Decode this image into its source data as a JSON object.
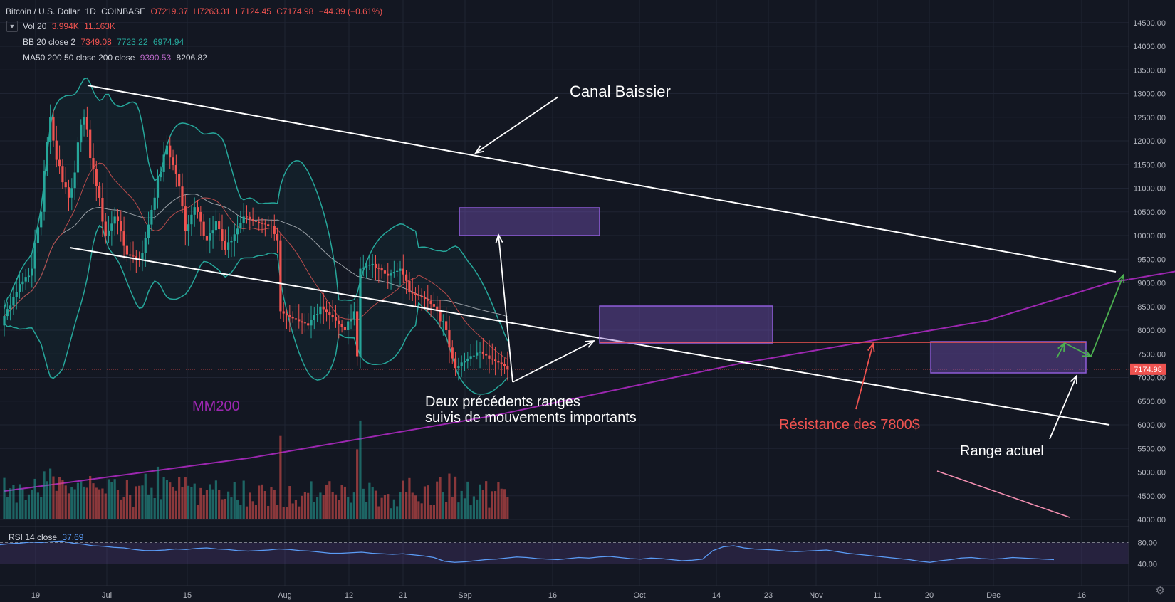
{
  "header": {
    "symbol": "Bitcoin / U.S. Dollar",
    "interval": "1D",
    "exchange": "COINBASE",
    "open": "O7219.37",
    "high": "H7263.31",
    "low": "L7124.45",
    "close": "C7174.98",
    "change": "−44.39 (−0.61%)",
    "vol_label": "Vol 20",
    "vol_values": [
      "3.994K",
      "11.163K"
    ],
    "bb_label": "BB 20 close 2",
    "bb_values": [
      "7349.08",
      "7723.22",
      "6974.94"
    ],
    "ma_label": "MA50 200 50 close 200 close",
    "ma_values": [
      "9390.53",
      "8206.82"
    ]
  },
  "rsi": {
    "label": "RSI 14 close",
    "value": "37.69",
    "ticks": [
      "80.00",
      "40.00"
    ]
  },
  "colors": {
    "up": "#26a69a",
    "down": "#ef5350",
    "ma200": "#9c27b0",
    "bb": "#26a69a",
    "range_fill": "#7e57c2",
    "trendline": "#ffffff",
    "resistance": "#ef5350",
    "target_arrow": "#4caf50",
    "rsi": "#5b9cf6"
  },
  "chart_data": {
    "type": "candlestick",
    "title": "Bitcoin / U.S. Dollar",
    "ylim": [
      3900,
      14800
    ],
    "y_ticks": [
      "14500.00",
      "14000.00",
      "13500.00",
      "13000.00",
      "12500.00",
      "12000.00",
      "11500.00",
      "11000.00",
      "10500.00",
      "10000.00",
      "9500.00",
      "9000.00",
      "8500.00",
      "8000.00",
      "7500.00",
      "7000.00",
      "6500.00",
      "6000.00",
      "5500.00",
      "5000.00",
      "4500.00",
      "4000.00"
    ],
    "x_ticks": [
      "19",
      "Jul",
      "15",
      "Aug",
      "12",
      "21",
      "Sep",
      "16",
      "Oct",
      "14",
      "23",
      "Nov",
      "11",
      "20",
      "Dec",
      "16"
    ],
    "last_price": "7174.98",
    "anchors": [
      {
        "v": 8300,
        "d": 1
      },
      {
        "v": 8800,
        "d": 4
      },
      {
        "v": 9300,
        "d": 5
      },
      {
        "v": 10500,
        "d": 3
      },
      {
        "v": 12500,
        "d": 3
      },
      {
        "v": 11600,
        "d": 2
      },
      {
        "v": 10800,
        "d": 4
      },
      {
        "v": 12500,
        "d": 5
      },
      {
        "v": 11400,
        "d": 3
      },
      {
        "v": 10000,
        "d": 4
      },
      {
        "v": 10400,
        "d": 3
      },
      {
        "v": 9600,
        "d": 4
      },
      {
        "v": 9500,
        "d": 4
      },
      {
        "v": 10800,
        "d": 5
      },
      {
        "v": 11900,
        "d": 4
      },
      {
        "v": 11300,
        "d": 3
      },
      {
        "v": 10100,
        "d": 3
      },
      {
        "v": 10600,
        "d": 3
      },
      {
        "v": 9900,
        "d": 4
      },
      {
        "v": 10300,
        "d": 3
      },
      {
        "v": 9700,
        "d": 3
      },
      {
        "v": 10400,
        "d": 6
      },
      {
        "v": 10250,
        "d": 6
      },
      {
        "v": 10200,
        "d": 3
      },
      {
        "v": 9900,
        "d": 2
      },
      {
        "v": 8400,
        "d": 1
      },
      {
        "v": 8250,
        "d": 4
      },
      {
        "v": 8100,
        "d": 5
      },
      {
        "v": 8500,
        "d": 4
      },
      {
        "v": 8200,
        "d": 5
      },
      {
        "v": 8000,
        "d": 3
      },
      {
        "v": 8400,
        "d": 3
      },
      {
        "v": 7450,
        "d": 1
      },
      {
        "v": 9300,
        "d": 1
      },
      {
        "v": 9400,
        "d": 4
      },
      {
        "v": 9150,
        "d": 5
      },
      {
        "v": 9300,
        "d": 4
      },
      {
        "v": 8800,
        "d": 3
      },
      {
        "v": 8700,
        "d": 4
      },
      {
        "v": 8500,
        "d": 4
      },
      {
        "v": 8000,
        "d": 4
      },
      {
        "v": 7200,
        "d": 3
      },
      {
        "v": 7400,
        "d": 4
      },
      {
        "v": 7550,
        "d": 4
      },
      {
        "v": 7350,
        "d": 5
      },
      {
        "v": 7175,
        "d": 4
      }
    ],
    "ma200_points": [
      [
        0,
        4600
      ],
      [
        80,
        5300
      ],
      [
        160,
        6200
      ],
      [
        240,
        7300
      ],
      [
        320,
        8200
      ],
      [
        360,
        9000
      ],
      [
        400,
        9450
      ],
      [
        420,
        9400
      ]
    ],
    "rsi_series": [
      66,
      68,
      69,
      71,
      70,
      72,
      73,
      69,
      67,
      64,
      63,
      61,
      60,
      57,
      55,
      55,
      56,
      58,
      57,
      59,
      60,
      58,
      57,
      55,
      54,
      55,
      56,
      58,
      57,
      55,
      54,
      52,
      50,
      50,
      51,
      52,
      50,
      49,
      48,
      49,
      47,
      45,
      42,
      35,
      33,
      34,
      36,
      38,
      39,
      41,
      43,
      42,
      40,
      39,
      38,
      40,
      42,
      41,
      43,
      44,
      42,
      40,
      39,
      41,
      40,
      38,
      36,
      37,
      39,
      55,
      62,
      64,
      60,
      58,
      57,
      56,
      54,
      53,
      54,
      55,
      56,
      53,
      50,
      48,
      46,
      44,
      42,
      40,
      38,
      35,
      33,
      36,
      38,
      41,
      42,
      40,
      39,
      40,
      42,
      41,
      40,
      39,
      38
    ]
  },
  "annotations": {
    "canal": "Canal Baissier",
    "mm200": "MM200",
    "ranges_line1": "Deux précédents ranges",
    "ranges_line2": "suivis de mouvements importants",
    "resistance": "Résistance des 7800$",
    "range_actuel": "Range actuel"
  }
}
